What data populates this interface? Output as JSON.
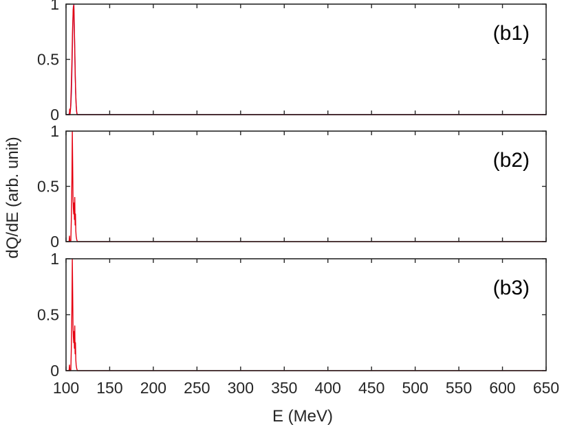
{
  "ylabel": "dQ/dE (arb. unit)",
  "xlabel": "E (MeV)",
  "colors": {
    "axis": "#262626",
    "series_purple": "#7E2F8E",
    "series_red": "#E50010"
  },
  "chart_data": [
    {
      "type": "line",
      "panel_label": "(b1)",
      "xlim": [
        100,
        650
      ],
      "ylim": [
        0,
        1
      ],
      "xticks": [
        100,
        150,
        200,
        250,
        300,
        350,
        400,
        450,
        500,
        550,
        600,
        650
      ],
      "yticks": [
        0,
        0.5,
        1
      ],
      "ytick_labels": [
        "0",
        "0.5",
        "1"
      ],
      "series": [
        {
          "color": "#7E2F8E",
          "x": [
            100,
            103,
            104.8,
            105.5,
            106.2,
            106.9,
            107.6,
            108.3,
            109,
            110,
            111,
            112,
            113,
            650
          ],
          "y": [
            0,
            0,
            0.03,
            0.08,
            0.2,
            0.45,
            0.75,
            0.97,
            1.0,
            0.6,
            0.2,
            0.03,
            0,
            0
          ]
        },
        {
          "color": "#E50010",
          "x": [
            100,
            103.8,
            104.2,
            104.6,
            105,
            105.4,
            106,
            106.8,
            107.5,
            108.2,
            108.9,
            109.7,
            110.5,
            111.5,
            112.5,
            650
          ],
          "y": [
            0,
            0,
            0.05,
            0,
            0.04,
            0.1,
            0.25,
            0.5,
            0.78,
            0.95,
            0.99,
            0.7,
            0.35,
            0.1,
            0,
            0
          ]
        }
      ]
    },
    {
      "type": "line",
      "panel_label": "(b2)",
      "xlim": [
        100,
        650
      ],
      "ylim": [
        0,
        1
      ],
      "xticks": [
        100,
        150,
        200,
        250,
        300,
        350,
        400,
        450,
        500,
        550,
        600,
        650
      ],
      "yticks": [
        0,
        0.5,
        1
      ],
      "ytick_labels": [
        "0",
        "0.5",
        "1"
      ],
      "series": [
        {
          "color": "#E50010",
          "x": [
            100,
            103.5,
            104,
            104.5,
            105.5,
            106.2,
            106.8,
            107.2,
            107.6,
            108,
            108.4,
            108.8,
            109.2,
            109.6,
            110,
            110.4,
            110.8,
            111.2,
            111.6,
            112.2,
            113,
            650
          ],
          "y": [
            0,
            0,
            0.05,
            0,
            0,
            0.25,
            0.6,
            1.0,
            0.7,
            0.4,
            0.3,
            0.25,
            0.35,
            0.2,
            0.4,
            0.15,
            0.25,
            0.1,
            0.05,
            0.02,
            0,
            0
          ]
        }
      ]
    },
    {
      "type": "line",
      "panel_label": "(b3)",
      "xlim": [
        100,
        650
      ],
      "ylim": [
        0,
        1
      ],
      "xticks": [
        100,
        150,
        200,
        250,
        300,
        350,
        400,
        450,
        500,
        550,
        600,
        650
      ],
      "yticks": [
        0,
        0.5,
        1
      ],
      "ytick_labels": [
        "0",
        "0.5",
        "1"
      ],
      "series": [
        {
          "color": "#E50010",
          "x": [
            100,
            103.5,
            104,
            104.5,
            105.5,
            106.2,
            106.8,
            107.2,
            107.6,
            108,
            108.4,
            108.8,
            109.2,
            109.6,
            110,
            110.4,
            110.8,
            111.2,
            111.6,
            112.2,
            113,
            650
          ],
          "y": [
            0,
            0,
            0.05,
            0,
            0,
            0.25,
            0.6,
            1.0,
            0.7,
            0.4,
            0.3,
            0.25,
            0.35,
            0.2,
            0.4,
            0.15,
            0.25,
            0.1,
            0.05,
            0.02,
            0,
            0
          ]
        }
      ]
    }
  ]
}
